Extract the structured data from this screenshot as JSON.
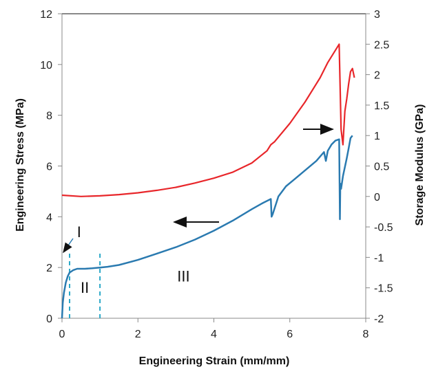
{
  "chart_data": {
    "type": "line",
    "title": "",
    "xlabel": "Engineering Strain (mm/mm)",
    "ylabel": "Engineering Stress (MPa)",
    "y2label": "Storage Modulus (GPa)",
    "xlim": [
      0,
      8
    ],
    "ylim": [
      0,
      12
    ],
    "y2lim": [
      -2,
      3
    ],
    "x_ticks": [
      "0",
      "2",
      "4",
      "6",
      "8"
    ],
    "y_ticks": [
      "0",
      "2",
      "4",
      "6",
      "8",
      "10",
      "12"
    ],
    "y2_ticks": [
      "-2",
      "-1.5",
      "-1",
      "-0.5",
      "0",
      "0.5",
      "1",
      "1.5",
      "2",
      "2.5",
      "3"
    ],
    "grid": false,
    "series": [
      {
        "axis": "left",
        "color": "#2a7ab0",
        "x": [
          0,
          0.02,
          0.05,
          0.1,
          0.15,
          0.2,
          0.3,
          0.4,
          0.6,
          0.8,
          1.0,
          1.2,
          1.5,
          2.0,
          2.5,
          3.0,
          3.5,
          4.0,
          4.5,
          5.0,
          5.3,
          5.5,
          5.52,
          5.55,
          5.7,
          5.9,
          6.1,
          6.3,
          6.5,
          6.7,
          6.9,
          6.95,
          7.0,
          7.1,
          7.2,
          7.3,
          7.32,
          7.33,
          7.35,
          7.4,
          7.5,
          7.55,
          7.6,
          7.65
        ],
        "y": [
          0,
          0.6,
          1.0,
          1.4,
          1.65,
          1.8,
          1.9,
          1.95,
          1.95,
          1.97,
          2.0,
          2.03,
          2.1,
          2.3,
          2.55,
          2.8,
          3.1,
          3.45,
          3.85,
          4.3,
          4.55,
          4.7,
          4.0,
          4.1,
          4.8,
          5.2,
          5.45,
          5.7,
          5.95,
          6.2,
          6.55,
          6.2,
          6.6,
          6.85,
          7.0,
          7.05,
          3.9,
          5.3,
          5.1,
          5.6,
          6.3,
          6.7,
          7.1,
          7.2
        ]
      },
      {
        "axis": "right",
        "color": "#e8262a",
        "x": [
          0,
          0.5,
          1.0,
          1.5,
          2.0,
          2.5,
          3.0,
          3.5,
          4.0,
          4.5,
          5.0,
          5.4,
          5.5,
          5.6,
          6.0,
          6.4,
          6.8,
          7.0,
          7.2,
          7.3,
          7.35,
          7.4,
          7.45,
          7.5,
          7.55,
          7.6,
          7.65,
          7.7
        ],
        "y": [
          0.02,
          0.0,
          0.01,
          0.03,
          0.06,
          0.1,
          0.15,
          0.22,
          0.3,
          0.4,
          0.55,
          0.75,
          0.85,
          0.9,
          1.2,
          1.55,
          1.95,
          2.2,
          2.4,
          2.5,
          1.1,
          0.85,
          1.4,
          1.6,
          1.85,
          2.05,
          2.1,
          1.95
        ]
      }
    ],
    "annotations": [
      {
        "text": "I",
        "x": 0.45,
        "y": 3.2
      },
      {
        "text": "II",
        "x": 0.6,
        "y": 1.0
      },
      {
        "text": "III",
        "x": 3.2,
        "y": 1.45
      }
    ],
    "reference_lines_x": [
      0.2,
      1.0
    ]
  }
}
